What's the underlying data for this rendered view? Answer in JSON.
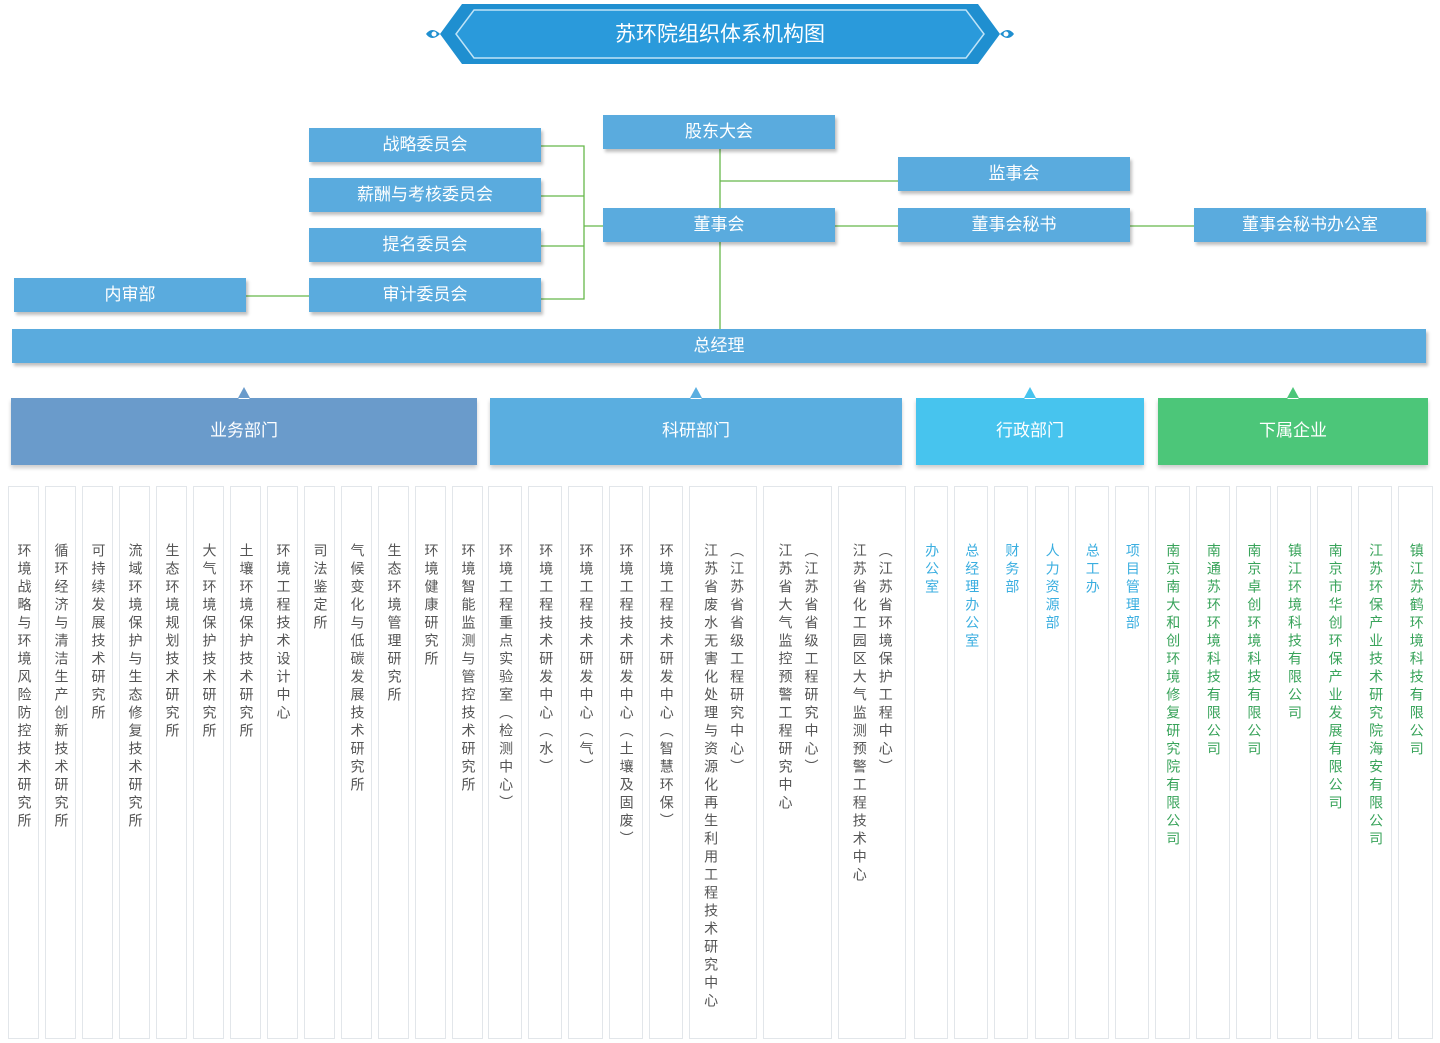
{
  "title": "苏环院组织体系机构图",
  "governance": {
    "shareholders_meeting": "股东大会",
    "board": "董事会",
    "supervisory_board": "监事会",
    "board_secretary": "董事会秘书",
    "secretary_office": "董事会秘书办公室",
    "strategy_committee": "战略委员会",
    "compensation_committee": "薪酬与考核委员会",
    "nomination_committee": "提名委员会",
    "audit_committee": "审计委员会",
    "internal_audit": "内审部"
  },
  "general_manager": "总经理",
  "departments": [
    {
      "name": "业务部门",
      "units": [
        {
          "name": "环境战略与环境风险防控技术研究所"
        },
        {
          "name": "循环经济与清洁生产创新技术研究所"
        },
        {
          "name": "可持续发展技术研究所"
        },
        {
          "name": "流域环境保护与生态修复技术研究所"
        },
        {
          "name": "生态环境规划技术研究所"
        },
        {
          "name": "大气环境保护技术研究所"
        },
        {
          "name": "土壤环境保护技术研究所"
        },
        {
          "name": "环境工程技术设计中心"
        },
        {
          "name": "司法鉴定所"
        },
        {
          "name": "气候变化与低碳发展技术研究所"
        },
        {
          "name": "生态环境管理研究所"
        },
        {
          "name": "环境健康研究所"
        },
        {
          "name": "环境智能监测与管控技术研究所"
        }
      ]
    },
    {
      "name": "科研部门",
      "units": [
        {
          "name": "环境工程重点实验室（检测中心）"
        },
        {
          "name": "环境工程技术研发中心（水）"
        },
        {
          "name": "环境工程技术研发中心（气）"
        },
        {
          "name": "环境工程技术研发中心（土壤及固废）"
        },
        {
          "name": "环境工程技术研发中心（智慧环保）"
        },
        {
          "name": "江苏省废水无害化处理与资源化再生利用工程技术研究中心",
          "note": "（江苏省省级工程研究中心）"
        },
        {
          "name": "江苏省大气监控预警工程研究中心",
          "note": "（江苏省省级工程研究中心）"
        },
        {
          "name": "江苏省化工园区大气监测预警工程技术中心",
          "note": "（江苏省环境保护工程中心）"
        }
      ]
    },
    {
      "name": "行政部门",
      "units": [
        {
          "name": "办公室"
        },
        {
          "name": "总经理办公室"
        },
        {
          "name": "财务部"
        },
        {
          "name": "人力资源部"
        },
        {
          "name": "总工办"
        },
        {
          "name": "项目管理部"
        }
      ]
    },
    {
      "name": "下属企业",
      "units": [
        {
          "name": "南京南大和创环境修复研究院有限公司"
        },
        {
          "name": "南通苏环环境科技有限公司"
        },
        {
          "name": "南京卓创环境科技有限公司"
        },
        {
          "name": "镇江环境科技有限公司"
        },
        {
          "name": "南京市华创环保产业发展有限公司"
        },
        {
          "name": "江苏环保产业技术研究院海安有限公司"
        },
        {
          "name": "镇江苏鹤环境科技有限公司"
        }
      ]
    }
  ]
}
